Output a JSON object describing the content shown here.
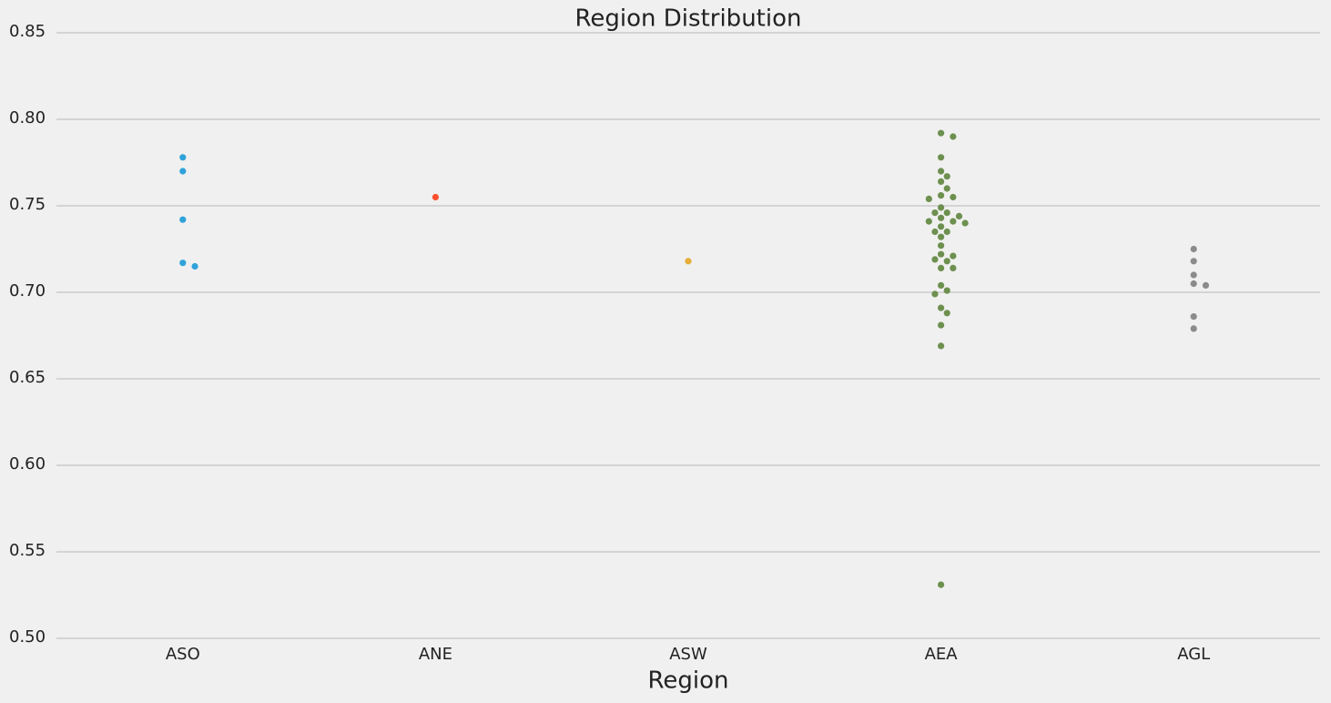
{
  "chart_data": {
    "type": "swarm",
    "title": "Region Distribution",
    "xlabel": "Region",
    "categories": [
      "ASO",
      "ANE",
      "ASW",
      "AEA",
      "AGL"
    ],
    "colors": [
      "#30a2da",
      "#fc4f30",
      "#e5ae38",
      "#6d904f",
      "#8b8b8b"
    ],
    "values": [
      [
        0.778,
        0.77,
        0.742,
        0.717,
        0.715
      ],
      [
        0.755
      ],
      [
        0.718
      ],
      [
        0.792,
        0.79,
        0.778,
        0.77,
        0.767,
        0.764,
        0.76,
        0.756,
        0.755,
        0.754,
        0.749,
        0.746,
        0.746,
        0.744,
        0.743,
        0.741,
        0.741,
        0.74,
        0.738,
        0.735,
        0.735,
        0.732,
        0.727,
        0.722,
        0.721,
        0.719,
        0.718,
        0.714,
        0.714,
        0.704,
        0.701,
        0.699,
        0.691,
        0.688,
        0.681,
        0.669,
        0.531
      ],
      [
        0.725,
        0.718,
        0.71,
        0.705,
        0.704,
        0.686,
        0.679
      ]
    ],
    "ylim": [
      0.5,
      0.85
    ],
    "yticks": [
      {
        "value": 0.5,
        "label": "0.50"
      },
      0.55,
      {
        "value": 0.6,
        "label": "0.60"
      },
      0.65,
      {
        "value": 0.7,
        "label": "0.70"
      },
      0.75,
      {
        "value": 0.8,
        "label": "0.80"
      },
      0.85
    ],
    "grid": true
  }
}
